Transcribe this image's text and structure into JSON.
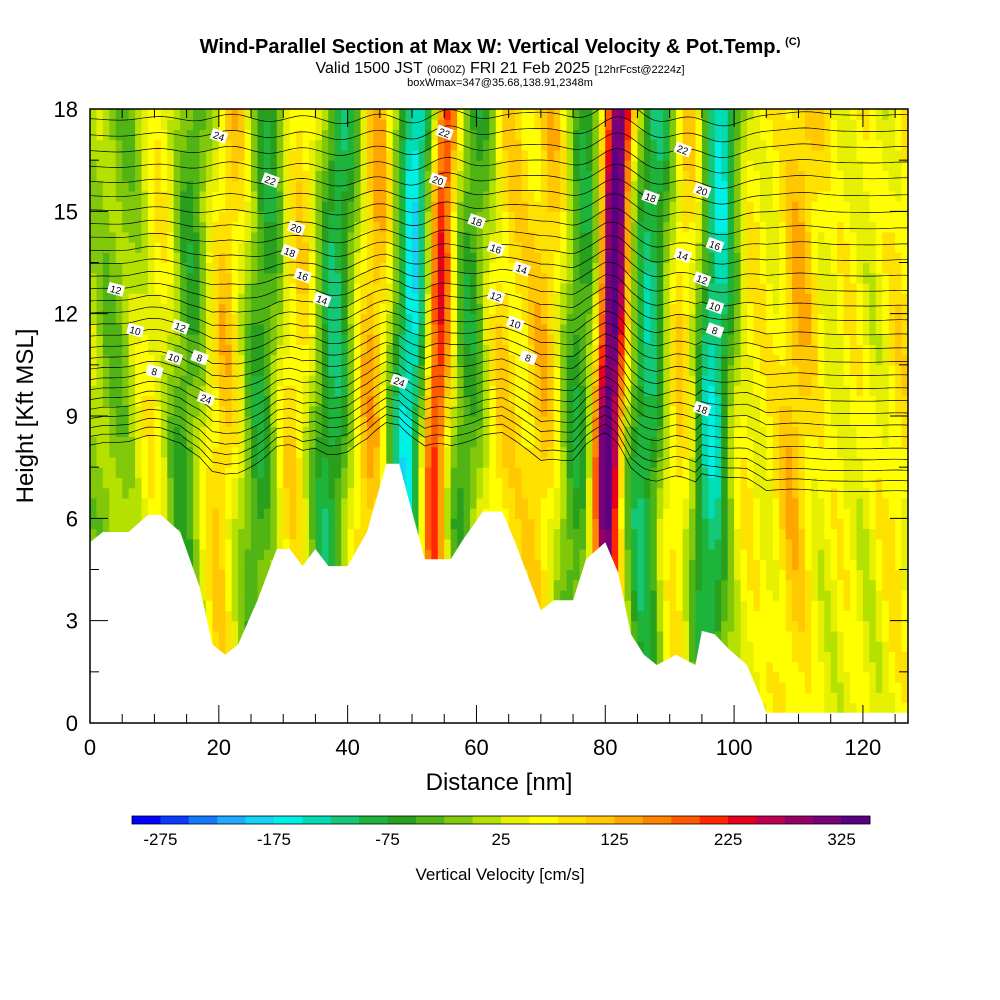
{
  "header": {
    "title": "Wind-Parallel Section at Max W: Vertical Velocity & Pot.Temp.",
    "copyright": "(C)",
    "valid_prefix": "Valid 1500 JST",
    "valid_zulu": "(0600Z)",
    "valid_date": "FRI 21 Feb 2025",
    "forecast_info": "[12hrFcst@2224z]",
    "box_info": "boxWmax=347@35.68,138.91,2348m"
  },
  "chart_data": {
    "type": "heatmap",
    "title": "Wind-Parallel Section at Max W: Vertical Velocity & Pot.Temp.",
    "xlabel": "Distance [nm]",
    "ylabel": "Height [Kft MSL]",
    "xlim": [
      0,
      127
    ],
    "ylim": [
      0,
      18
    ],
    "xticks": [
      0,
      20,
      40,
      60,
      80,
      100,
      120
    ],
    "yticks": [
      0,
      3,
      6,
      9,
      12,
      15,
      18
    ],
    "colorbar": {
      "title": "Vertical Velocity [cm/s]",
      "labels": [
        -275,
        -175,
        -75,
        25,
        125,
        225,
        325
      ],
      "min": -300,
      "max": 350,
      "step": 25,
      "colors": [
        "#0000ff",
        "#0a3cff",
        "#1478ff",
        "#1eaaff",
        "#14d2f5",
        "#00f0e6",
        "#00dcb4",
        "#14c878",
        "#1eb43c",
        "#28a01e",
        "#50b414",
        "#82c80a",
        "#b4e100",
        "#e6f000",
        "#ffff00",
        "#ffe100",
        "#ffc800",
        "#ffa500",
        "#ff8200",
        "#ff5a00",
        "#ff2800",
        "#e6001e",
        "#be0050",
        "#960064",
        "#780078",
        "#5a0082"
      ]
    },
    "terrain_nm_kft": [
      [
        0,
        5.3
      ],
      [
        2,
        5.6
      ],
      [
        6,
        5.6
      ],
      [
        9,
        6.1
      ],
      [
        11,
        6.1
      ],
      [
        14,
        5.6
      ],
      [
        17,
        4.0
      ],
      [
        19,
        2.3
      ],
      [
        21,
        2.0
      ],
      [
        23,
        2.3
      ],
      [
        26,
        3.6
      ],
      [
        29,
        5.1
      ],
      [
        31,
        5.1
      ],
      [
        33,
        4.6
      ],
      [
        35,
        5.1
      ],
      [
        37,
        4.6
      ],
      [
        40,
        4.6
      ],
      [
        43,
        5.6
      ],
      [
        46,
        7.6
      ],
      [
        48,
        7.6
      ],
      [
        50,
        6.2
      ],
      [
        52,
        4.8
      ],
      [
        56,
        4.8
      ],
      [
        58,
        5.4
      ],
      [
        61,
        6.2
      ],
      [
        64,
        6.2
      ],
      [
        66,
        5.3
      ],
      [
        68,
        4.3
      ],
      [
        70,
        3.3
      ],
      [
        72,
        3.6
      ],
      [
        75,
        3.6
      ],
      [
        77,
        4.8
      ],
      [
        80,
        5.3
      ],
      [
        82,
        4.4
      ],
      [
        84,
        2.6
      ],
      [
        86,
        2.0
      ],
      [
        88,
        1.7
      ],
      [
        91,
        2.0
      ],
      [
        94,
        1.7
      ],
      [
        95,
        2.7
      ],
      [
        97,
        2.6
      ],
      [
        99,
        2.2
      ],
      [
        102,
        1.7
      ],
      [
        104,
        0.8
      ],
      [
        105,
        0.3
      ],
      [
        127,
        0.3
      ]
    ],
    "velocity_bands": [
      {
        "x": 3,
        "w": -40
      },
      {
        "x": 10,
        "w": 60
      },
      {
        "x": 14,
        "w": -90
      },
      {
        "x": 20,
        "w": 95
      },
      {
        "x": 26,
        "w": -100
      },
      {
        "x": 31,
        "w": 90
      },
      {
        "x": 37,
        "w": -130
      },
      {
        "x": 43,
        "w": 120
      },
      {
        "x": 49,
        "w": -200
      },
      {
        "x": 53,
        "w": 250
      },
      {
        "x": 58,
        "w": -90
      },
      {
        "x": 63,
        "w": 80
      },
      {
        "x": 70,
        "w": 100
      },
      {
        "x": 75,
        "w": -100
      },
      {
        "x": 80,
        "w": 347
      },
      {
        "x": 86,
        "w": -140
      },
      {
        "x": 91,
        "w": 110
      },
      {
        "x": 96,
        "w": -180
      },
      {
        "x": 101,
        "w": 60
      },
      {
        "x": 109,
        "w": 100
      },
      {
        "x": 117,
        "w": 40
      },
      {
        "x": 125,
        "w": 60
      }
    ],
    "pot_temp_labels": [
      "24",
      "22",
      "20",
      "18",
      "16",
      "14",
      "12",
      "10",
      "8",
      "24",
      "22",
      "20",
      "18",
      "16",
      "14",
      "12",
      "10",
      "8",
      "24",
      "22",
      "20",
      "18",
      "16",
      "14",
      "12",
      "10",
      "8",
      "18",
      "12",
      "10",
      "8"
    ]
  }
}
